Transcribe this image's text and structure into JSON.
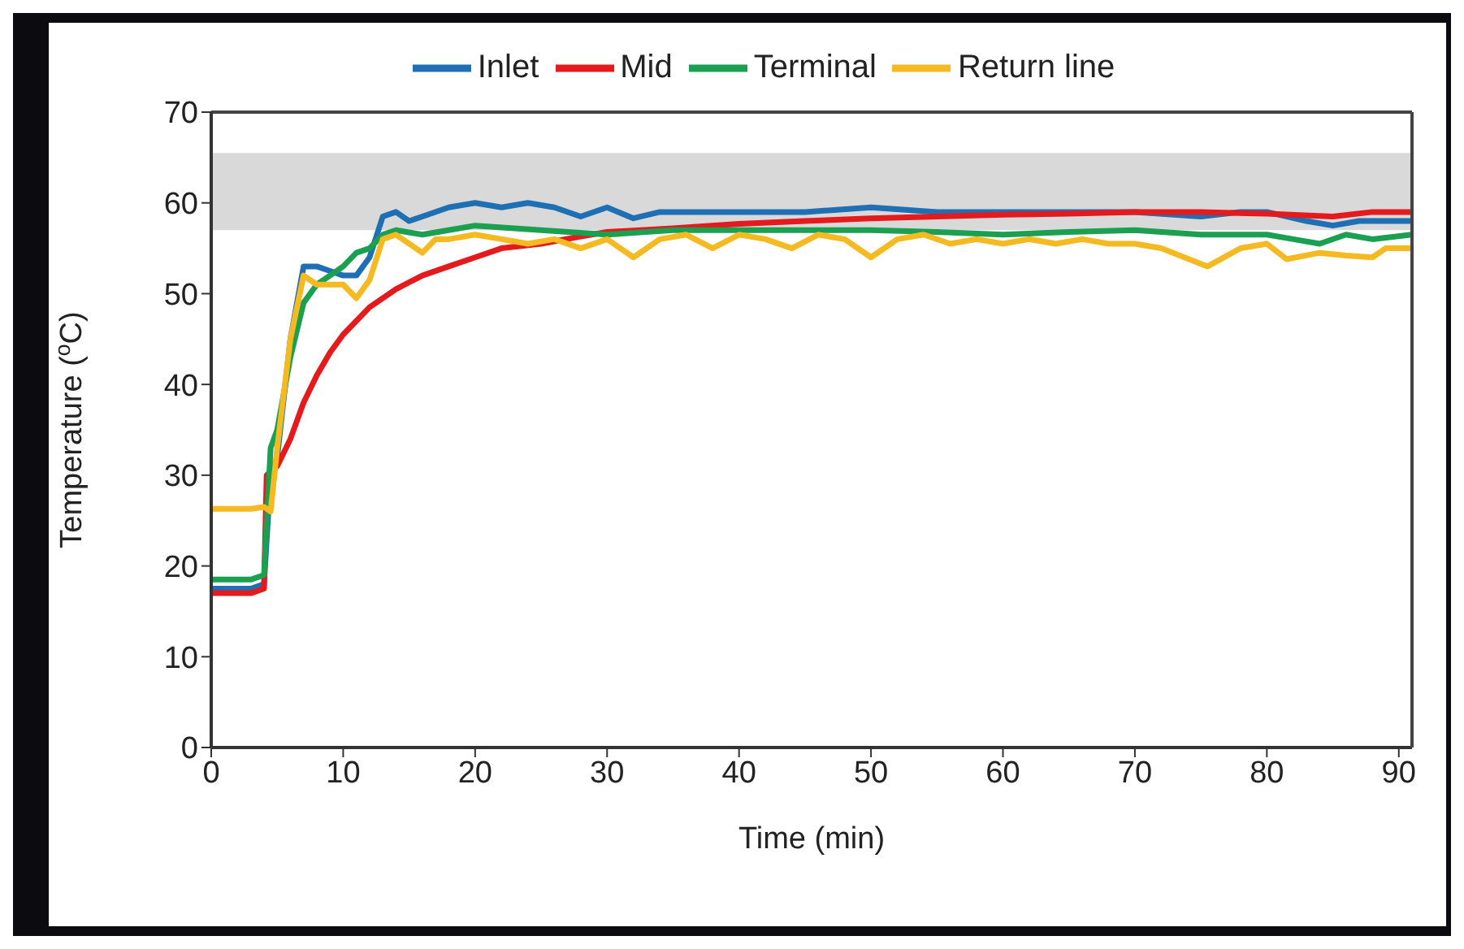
{
  "chart_data": {
    "type": "line",
    "xlabel": "Time (min)",
    "ylabel": "Temperature ($^{o}$C)",
    "xlim": [
      0,
      91
    ],
    "xticks": [
      0,
      10,
      20,
      30,
      40,
      50,
      60,
      70,
      80,
      90
    ],
    "ylim": [
      0,
      70
    ],
    "yticks": [
      0,
      10,
      20,
      30,
      40,
      50,
      60,
      70
    ],
    "grid": false,
    "legend": "top",
    "marker": "none",
    "line_style": "solid",
    "bands": [
      {
        "axis": "y",
        "from": 57,
        "to": 65.5,
        "color": "#d9d9d9"
      }
    ],
    "series": [
      {
        "name": "Inlet",
        "color": "#1f6fb5",
        "x": [
          0,
          1,
          2,
          3,
          4,
          4.5,
          5,
          6,
          7,
          8,
          9,
          10,
          11,
          12,
          13,
          14,
          15,
          16,
          18,
          20,
          22,
          24,
          26,
          28,
          30,
          32,
          34,
          36,
          40,
          45,
          50,
          55,
          60,
          65,
          70,
          75,
          78,
          80,
          83,
          85,
          87,
          91
        ],
        "values": [
          17.5,
          17.5,
          17.5,
          17.5,
          18,
          30,
          32,
          45,
          53,
          53,
          52.5,
          52,
          52,
          54,
          58.5,
          59,
          58,
          58.5,
          59.5,
          60,
          59.5,
          60,
          59.5,
          58.5,
          59.5,
          58.3,
          59,
          59,
          59,
          59,
          59.5,
          59,
          59,
          59,
          59,
          58.5,
          59,
          59,
          58,
          57.5,
          58,
          58
        ]
      },
      {
        "name": "Mid",
        "color": "#e41a1c",
        "x": [
          0,
          1,
          2,
          3,
          4,
          4.2,
          5,
          6,
          7,
          8,
          9,
          10,
          12,
          14,
          16,
          18,
          20,
          22,
          25,
          28,
          30,
          35,
          40,
          45,
          50,
          55,
          60,
          65,
          70,
          75,
          80,
          85,
          88,
          91
        ],
        "values": [
          17,
          17,
          17,
          17,
          17.5,
          30,
          31,
          34,
          38,
          41,
          43.5,
          45.5,
          48.5,
          50.5,
          52,
          53,
          54,
          55,
          55.5,
          56.3,
          56.8,
          57.2,
          57.7,
          58,
          58.3,
          58.5,
          58.7,
          58.8,
          59,
          59,
          58.8,
          58.5,
          59,
          59
        ]
      },
      {
        "name": "Terminal",
        "color": "#1aa050",
        "x": [
          0,
          1,
          2,
          3,
          4,
          4.5,
          5,
          6,
          7,
          8,
          9,
          10,
          11,
          12,
          13,
          14,
          16,
          18,
          20,
          25,
          30,
          35,
          40,
          45,
          50,
          55,
          60,
          65,
          70,
          75,
          80,
          82,
          84,
          86,
          88,
          91
        ],
        "values": [
          18.5,
          18.5,
          18.5,
          18.5,
          19,
          33,
          35,
          43,
          49,
          51,
          52,
          53,
          54.5,
          55,
          56.5,
          57,
          56.5,
          57,
          57.5,
          57,
          56.5,
          57,
          57,
          57,
          57,
          56.8,
          56.5,
          56.8,
          57,
          56.5,
          56.5,
          56,
          55.5,
          56.5,
          56,
          56.5
        ]
      },
      {
        "name": "Return line",
        "color": "#f5b921",
        "x": [
          0,
          1,
          2,
          3,
          4,
          4.5,
          5,
          6,
          7,
          8,
          9,
          10,
          11,
          12,
          13,
          14,
          15,
          16,
          17,
          18,
          20,
          22,
          24,
          26,
          28,
          30,
          32,
          34,
          36,
          38,
          40,
          42,
          44,
          46,
          48,
          50,
          52,
          54,
          56,
          58,
          60,
          62,
          64,
          66,
          68,
          70,
          72,
          75.5,
          78,
          80,
          81.5,
          84,
          86,
          88,
          89,
          91
        ],
        "values": [
          26.3,
          26.3,
          26.3,
          26.3,
          26.5,
          26,
          33,
          45,
          52,
          51,
          51,
          51,
          49.5,
          51.5,
          56,
          56.5,
          55.5,
          54.5,
          56,
          56,
          56.5,
          56,
          55.5,
          56,
          55,
          56,
          54,
          56,
          56.5,
          55,
          56.5,
          56,
          55,
          56.5,
          56,
          54,
          56,
          56.5,
          55.5,
          56,
          55.5,
          56,
          55.5,
          56,
          55.5,
          55.5,
          55,
          53,
          55,
          55.5,
          53.8,
          54.5,
          54.2,
          54,
          55,
          55
        ]
      }
    ]
  }
}
